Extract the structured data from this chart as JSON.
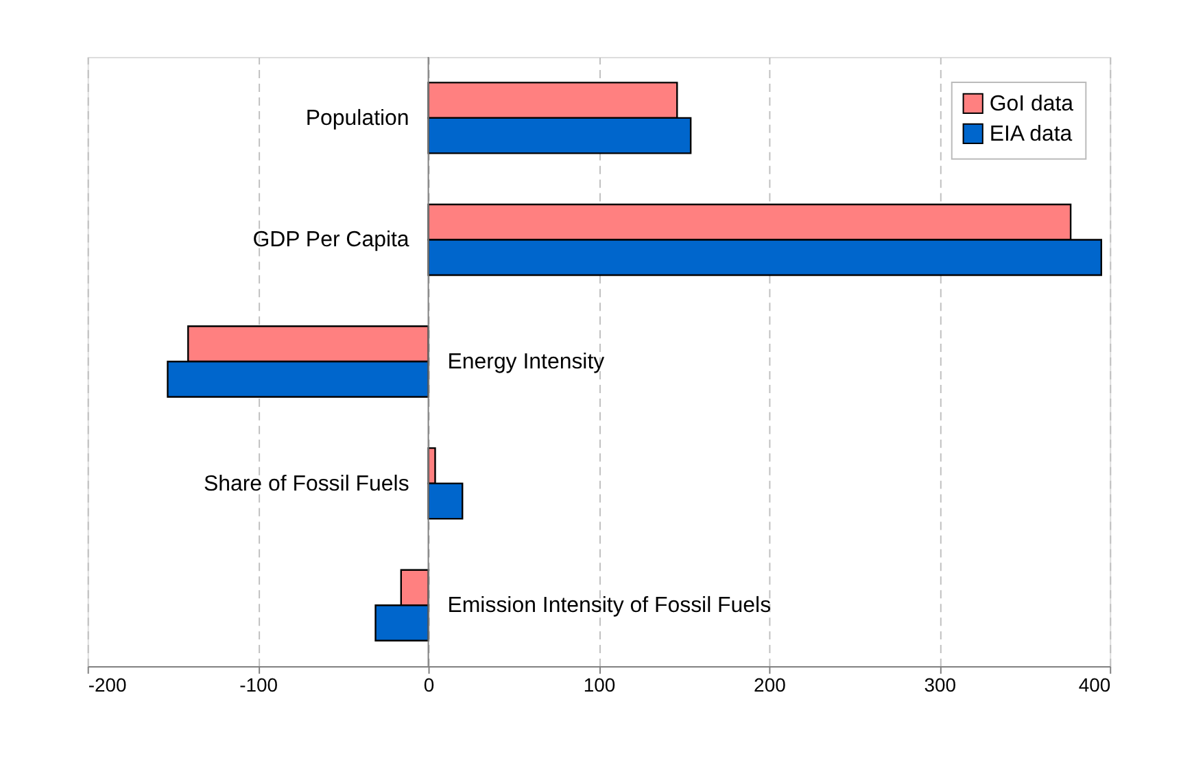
{
  "chart_data": {
    "type": "bar",
    "orientation": "horizontal",
    "categories": [
      "Population",
      "GDP Per Capita",
      "Energy Intensity",
      "Share of Fossil Fuels",
      "Emission Intensity of Fossil Fuels"
    ],
    "series": [
      {
        "name": "GoI data",
        "color": "#ff8080",
        "values": [
          146,
          377,
          -141,
          4,
          -16
        ]
      },
      {
        "name": "EIA data",
        "color": "#0066cc",
        "values": [
          154,
          395,
          -153,
          20,
          -31
        ]
      }
    ],
    "xlim": [
      -200,
      400
    ],
    "xticks": [
      -200,
      -100,
      0,
      100,
      200,
      300,
      400
    ],
    "grid": "x",
    "legend": "top right"
  }
}
